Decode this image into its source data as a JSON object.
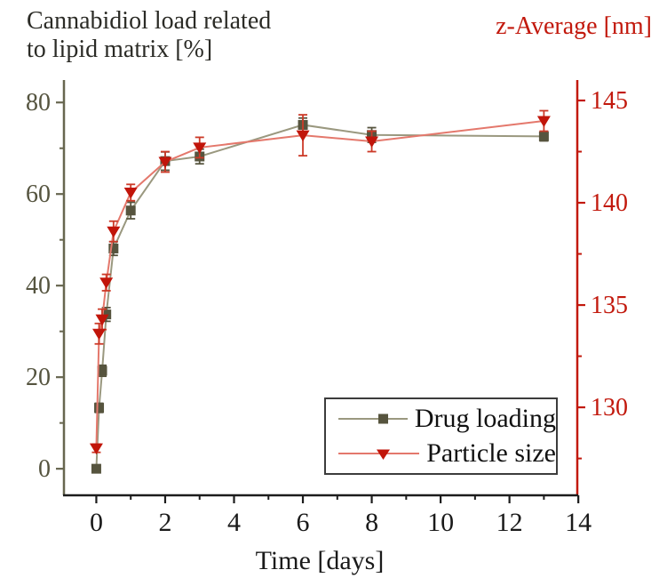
{
  "chart_data": {
    "type": "line",
    "x": [
      0,
      0.08,
      0.17,
      0.29,
      0.5,
      1,
      2,
      3,
      6,
      8,
      13
    ],
    "series": [
      {
        "name": "Drug loading",
        "axis": "left",
        "marker": "square",
        "marker_color": "#56543e",
        "line_color": "#9a987f",
        "err_color": "#56543e",
        "values": [
          0,
          13.3,
          21.4,
          33.7,
          48.1,
          56.4,
          67.2,
          68.2,
          75.1,
          72.9,
          72.6
        ],
        "errors": [
          0.4,
          1.0,
          1.2,
          1.5,
          1.5,
          1.8,
          2.0,
          1.6,
          1.5,
          1.6,
          1.0
        ]
      },
      {
        "name": "Particle size",
        "axis": "right",
        "marker": "triangle-down",
        "marker_color": "#c1150a",
        "line_color": "#e4786c",
        "err_color": "#cc3a28",
        "values": [
          128.0,
          133.6,
          134.3,
          136.1,
          138.6,
          140.5,
          142.0,
          142.7,
          143.3,
          143.0,
          144.0
        ],
        "errors": [
          0.2,
          0.5,
          0.5,
          0.4,
          0.5,
          0.4,
          0.5,
          0.5,
          1.0,
          0.5,
          0.5
        ]
      }
    ],
    "axes": {
      "x": {
        "label": "Time [days]",
        "lim": [
          -0.94,
          13.97
        ],
        "ticks": [
          0,
          2,
          4,
          6,
          8,
          10,
          12,
          14
        ],
        "minor_ticks": [
          1,
          3,
          5,
          7,
          9,
          11,
          13
        ],
        "color": "#1c1c1c",
        "tick_label_color": "#1a1a1a"
      },
      "left": {
        "title": "Cannabidiol load related\nto lipid matrix [%]",
        "lim": [
          -5.8,
          84.9
        ],
        "ticks": [
          0,
          20,
          40,
          60,
          80
        ],
        "minor_ticks": [
          10,
          30,
          50,
          70
        ],
        "color": "#67664f",
        "tick_label_color": "#55543f"
      },
      "right": {
        "title": "z-Average [nm]",
        "lim": [
          125.7,
          146.0
        ],
        "ticks": [
          130,
          135,
          140,
          145
        ],
        "minor_ticks": [
          127.5,
          132.5,
          137.5,
          142.5
        ],
        "color": "#c2190d",
        "tick_label_color": "#c2190d"
      }
    },
    "legend": {
      "position": "bottom-right",
      "entries": [
        "Drug loading",
        "Particle size"
      ]
    },
    "grid": false,
    "title_right_color": "#c2190d"
  }
}
